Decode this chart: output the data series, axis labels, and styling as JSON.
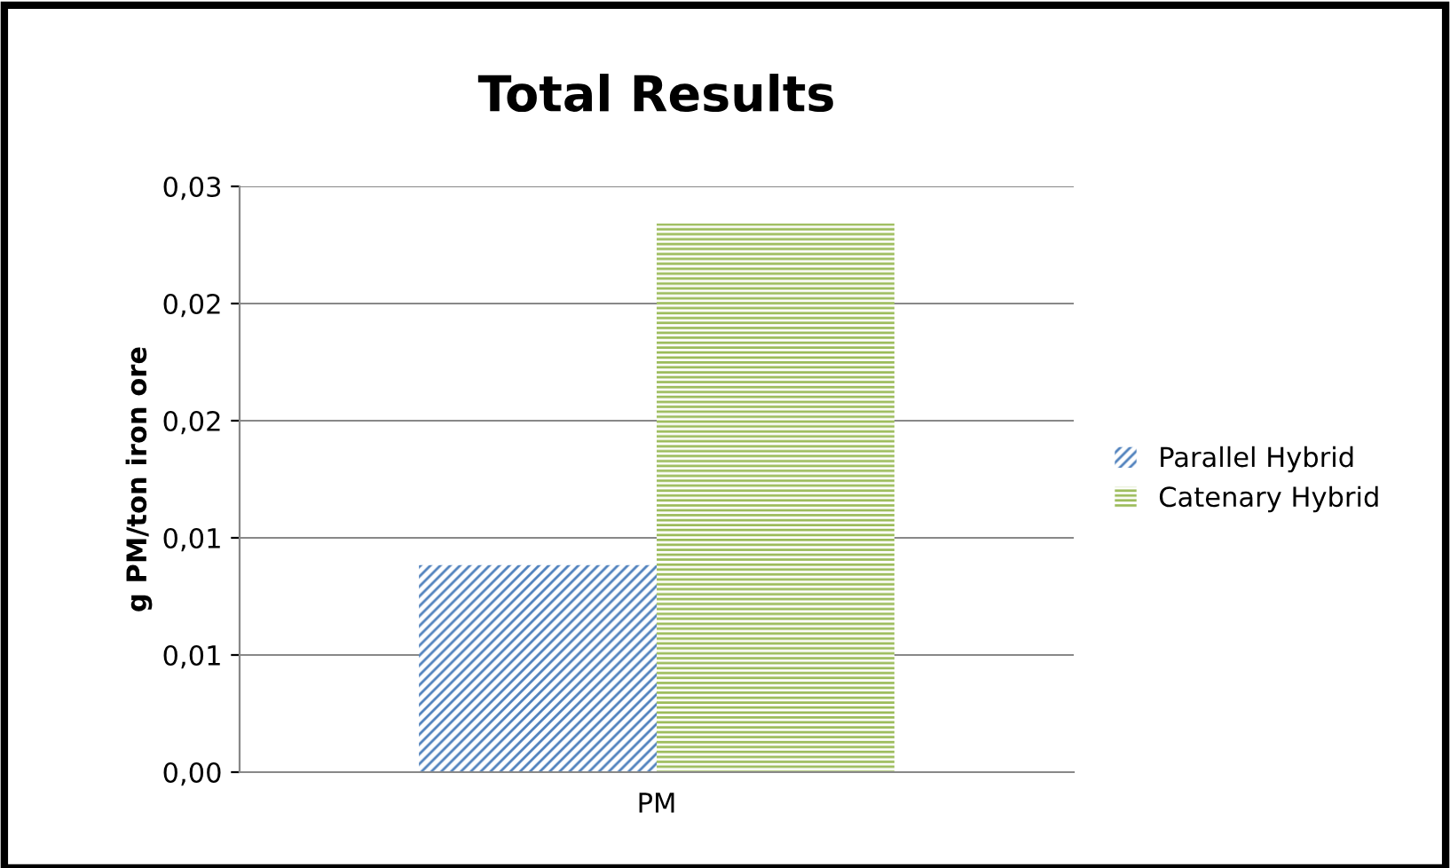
{
  "chart_data": {
    "type": "bar",
    "title": "Total Results",
    "ylabel": "g PM/ton iron ore",
    "categories": [
      "PM"
    ],
    "series": [
      {
        "name": "Parallel Hybrid",
        "color": "#4f81bd",
        "values": [
          0.0106
        ]
      },
      {
        "name": "Catenary Hybrid",
        "color": "#9bbb59",
        "values": [
          0.0281
        ]
      }
    ],
    "ylim": [
      0,
      0.03
    ],
    "yticks": [
      {
        "value": 0,
        "label": "0,00"
      },
      {
        "value": 0.006,
        "label": "0,01"
      },
      {
        "value": 0.012,
        "label": "0,01"
      },
      {
        "value": 0.018,
        "label": "0,02"
      },
      {
        "value": 0.024,
        "label": "0,02"
      },
      {
        "value": 0.03,
        "label": "0,03"
      }
    ],
    "grid": "y",
    "legend": "right"
  }
}
